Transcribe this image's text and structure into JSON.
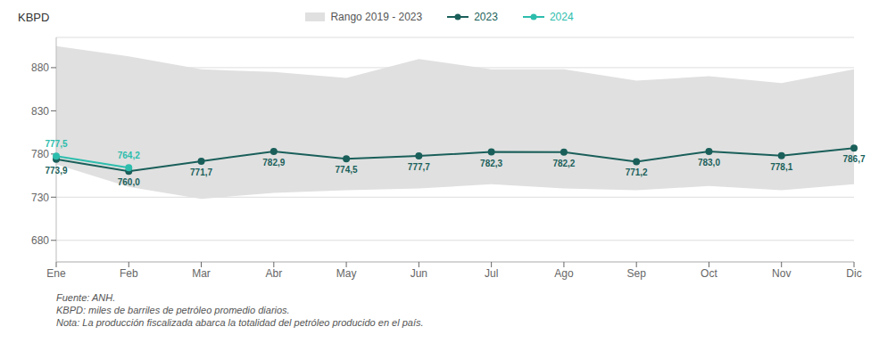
{
  "chart_data": {
    "type": "line",
    "categories": [
      "Ene",
      "Feb",
      "Mar",
      "Abr",
      "May",
      "Jun",
      "Jul",
      "Ago",
      "Sep",
      "Oct",
      "Nov",
      "Dic"
    ],
    "ylabel": "KBPD",
    "ylim": [
      655,
      915
    ],
    "yticks": [
      680,
      730,
      780,
      830,
      880
    ],
    "grid": true,
    "legend": "top",
    "series": [
      {
        "name": "Rango 2019 - 2023",
        "type": "band",
        "color": "#e0e0e0",
        "lower": [
          768,
          742,
          728,
          735,
          738,
          740,
          745,
          740,
          738,
          743,
          738,
          745
        ],
        "upper": [
          905,
          893,
          878,
          875,
          868,
          890,
          878,
          878,
          865,
          870,
          862,
          878
        ]
      },
      {
        "name": "2023",
        "type": "line",
        "color": "#1a5f5a",
        "marker": "o",
        "data_labels": true,
        "values": [
          773.9,
          760.0,
          771.7,
          782.9,
          774.5,
          777.7,
          782.3,
          782.2,
          771.2,
          783.0,
          778.1,
          786.7
        ],
        "value_labels": [
          "773,9",
          "760,0",
          "771,7",
          "782,9",
          "774,5",
          "777,7",
          "782,3",
          "782,2",
          "771,2",
          "783,0",
          "778,1",
          "786,7"
        ]
      },
      {
        "name": "2024",
        "type": "line",
        "color": "#2dbdad",
        "marker": "o",
        "data_labels": true,
        "values": [
          777.5,
          764.2,
          null,
          null,
          null,
          null,
          null,
          null,
          null,
          null,
          null,
          null
        ],
        "value_labels": [
          "777,5",
          "764,2",
          null,
          null,
          null,
          null,
          null,
          null,
          null,
          null,
          null,
          null
        ]
      }
    ],
    "annotations": [
      "Fuente: ANH.",
      "KBPD: miles de barriles de petróleo promedio diarios.",
      "Nota: La producción fiscalizada abarca la totalidad del petróleo producido en el país."
    ]
  }
}
